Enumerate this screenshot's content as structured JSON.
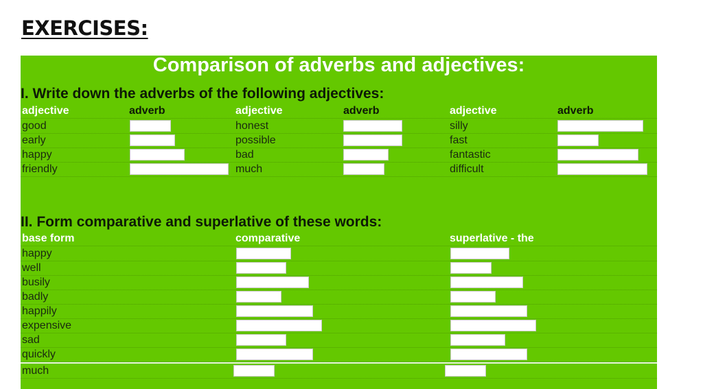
{
  "page_heading": "EXERCISES:",
  "sheet_title": "Comparison of adverbs and adjectives:",
  "colors": {
    "sheet_green": "#64c800",
    "header_white": "#ffffff",
    "answer_box": "#ffffff"
  },
  "section1": {
    "title": "I. Write down the adverbs of the following adjectives:",
    "headers": [
      "adjective",
      "adverb",
      "adjective",
      "adverb",
      "adjective",
      "adverb"
    ],
    "rows": [
      [
        "good",
        "honest",
        "silly"
      ],
      [
        "early",
        "possible",
        "fast"
      ],
      [
        "happy",
        "bad",
        "fantastic"
      ],
      [
        "friendly",
        "much",
        "difficult"
      ]
    ]
  },
  "section2": {
    "title": "II. Form comparative and superlative of these words:",
    "headers": [
      "base form",
      "comparative",
      "superlative - the"
    ],
    "words": [
      "happy",
      "well",
      "busily",
      "badly",
      "happily",
      "expensive",
      "sad",
      "quickly",
      "much"
    ]
  }
}
